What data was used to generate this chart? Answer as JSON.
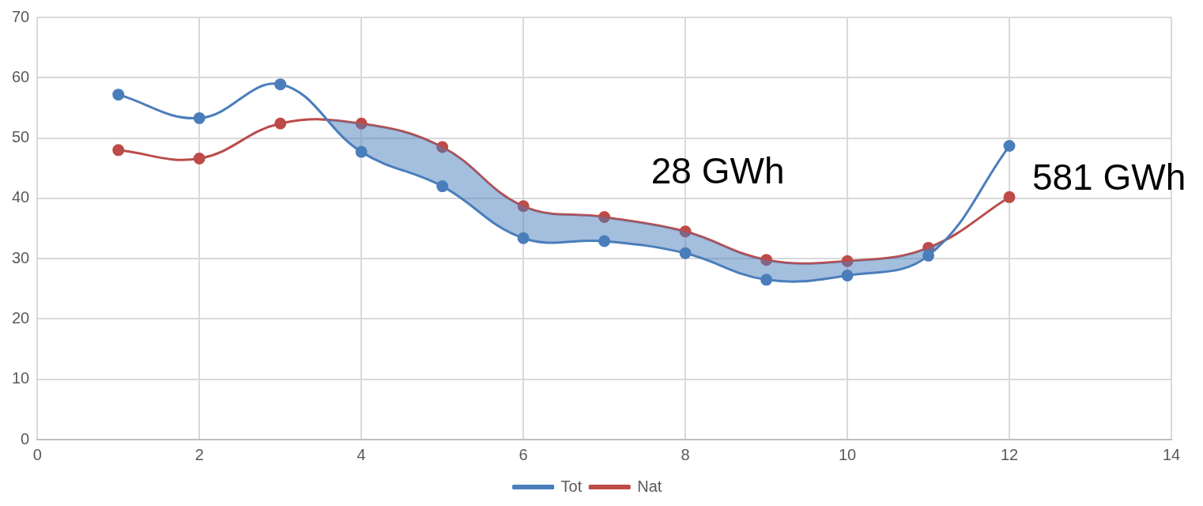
{
  "chart_data": {
    "type": "line",
    "x": [
      1,
      2,
      3,
      4,
      5,
      6,
      7,
      8,
      9,
      10,
      11,
      12
    ],
    "series": [
      {
        "name": "Tot",
        "color": "#4a7ebb",
        "values": [
          57.2,
          53.3,
          58.9,
          47.7,
          42.0,
          33.4,
          32.9,
          30.9,
          26.5,
          27.2,
          30.5,
          48.7
        ]
      },
      {
        "name": "Nat",
        "color": "#be4b48",
        "values": [
          48.0,
          46.6,
          52.4,
          52.4,
          48.5,
          38.7,
          36.9,
          34.5,
          29.8,
          29.6,
          31.8,
          40.2
        ]
      }
    ],
    "xlim": [
      0,
      14
    ],
    "xticks": [
      0,
      2,
      4,
      6,
      8,
      10,
      12,
      14
    ],
    "ylim": [
      0,
      70
    ],
    "yticks": [
      0,
      10,
      20,
      30,
      40,
      50,
      60,
      70
    ],
    "annotations": [
      "28 GWh",
      "581 GWh"
    ],
    "grid": true,
    "legend": "bottom",
    "marker": "circle",
    "line_style": "solid"
  }
}
